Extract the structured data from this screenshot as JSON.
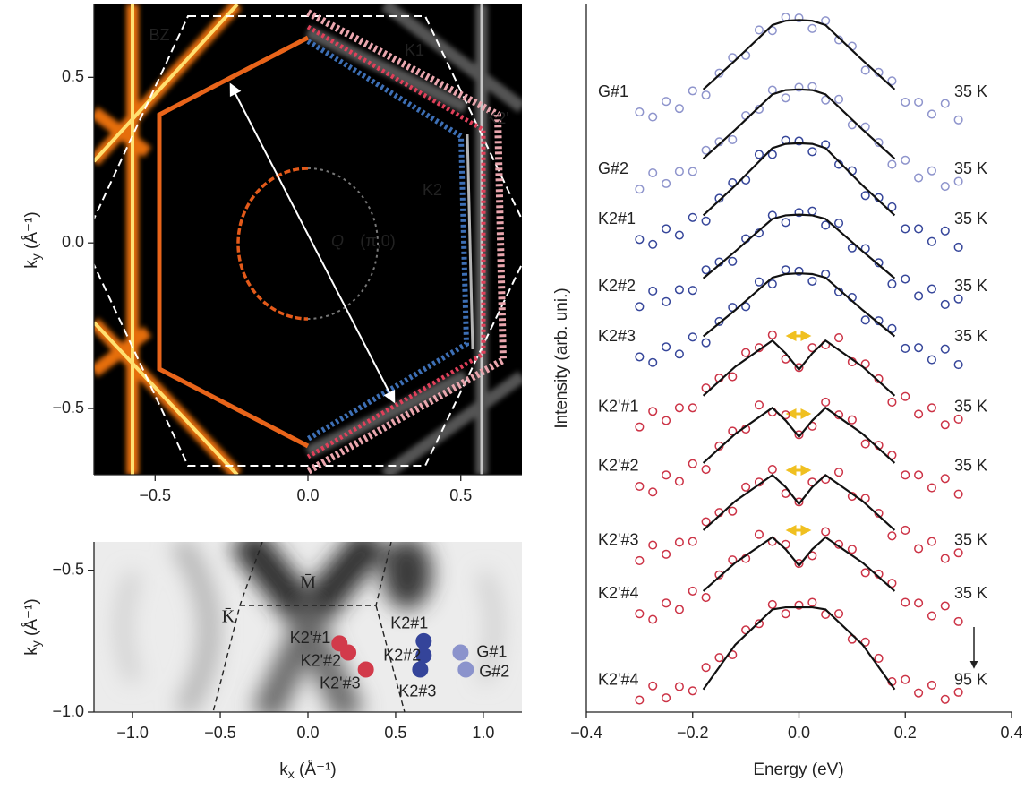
{
  "chart_data": [
    {
      "type": "map",
      "xlim": [
        -0.7,
        0.7
      ],
      "ylim": [
        -0.7,
        0.72
      ],
      "xticks": [
        {
          "value": -0.5,
          "label": "−0.5"
        },
        {
          "value": 0,
          "label": "0.0"
        },
        {
          "value": 0.5,
          "label": "0.5"
        }
      ],
      "yticks": [
        {
          "value": -0.5,
          "label": "−0.5"
        },
        {
          "value": 0,
          "label": "0.0"
        },
        {
          "value": 0.5,
          "label": "0.5"
        }
      ],
      "ylabel": [
        "k",
        "y",
        " (Å⁻¹)"
      ],
      "annotations": [
        {
          "text": "BZ",
          "color": "#ffffff"
        },
        {
          "text": "K1",
          "color": "#f0b0b8"
        },
        {
          "text": "K2'",
          "color": "#e0405a"
        },
        {
          "text": "K2",
          "color": "#3d6fb5"
        },
        {
          "text": "Q",
          "color": "#ffffff"
        },
        {
          "text": "(π,0)",
          "color": "#ffffff"
        }
      ]
    },
    {
      "type": "scatter",
      "xlim": [
        -1.22,
        1.22
      ],
      "ylim": [
        -1.0,
        -0.4
      ],
      "xticks": [
        {
          "value": -1,
          "label": "−1.0"
        },
        {
          "value": -0.5,
          "label": "−0.5"
        },
        {
          "value": 0,
          "label": "0.0"
        },
        {
          "value": 0.5,
          "label": "0.5"
        },
        {
          "value": 1,
          "label": "1.0"
        }
      ],
      "yticks": [
        {
          "value": -0.5,
          "label": "−0.5"
        },
        {
          "value": -1,
          "label": "−1.0"
        }
      ],
      "xlabel": [
        "k",
        "x",
        " (Å⁻¹)"
      ],
      "ylabel": [
        "k",
        "y",
        " (Å⁻¹)"
      ],
      "annotations": [
        {
          "text": "K̄",
          "color": "#222222"
        },
        {
          "text": "M̄",
          "color": "#222222"
        }
      ],
      "points": [
        {
          "label": "K2'#1",
          "x": 0.18,
          "y": -0.758,
          "color": "#d23a4a"
        },
        {
          "label": "K2'#2",
          "x": 0.23,
          "y": -0.79,
          "color": "#d23a4a"
        },
        {
          "label": "K2'#3",
          "x": 0.33,
          "y": -0.85,
          "color": "#d23a4a"
        },
        {
          "label": "K2#1",
          "x": 0.66,
          "y": -0.75,
          "color": "#34449a"
        },
        {
          "label": "K2#2",
          "x": 0.66,
          "y": -0.8,
          "color": "#34449a"
        },
        {
          "label": "K2#3",
          "x": 0.64,
          "y": -0.85,
          "color": "#34449a"
        },
        {
          "label": "G#1",
          "x": 0.87,
          "y": -0.79,
          "color": "#8b93cc"
        },
        {
          "label": "G#2",
          "x": 0.9,
          "y": -0.85,
          "color": "#8b93cc"
        }
      ]
    },
    {
      "type": "scatter",
      "xlim": [
        -0.4,
        0.4
      ],
      "ylim": [
        0,
        100
      ],
      "xticks": [
        {
          "value": -0.4,
          "label": "−0.4"
        },
        {
          "value": -0.2,
          "label": "−0.2"
        },
        {
          "value": 0,
          "label": "0.0"
        },
        0.2,
        0.4
      ],
      "xlabel": "Energy (eV)",
      "ylabel": "Intensity (arb. uni.)",
      "x": [
        -0.3,
        -0.275,
        -0.25,
        -0.225,
        -0.2,
        -0.175,
        -0.15,
        -0.125,
        -0.1,
        -0.075,
        -0.05,
        -0.025,
        0,
        0.025,
        0.05,
        0.075,
        0.1,
        0.125,
        0.15,
        0.175,
        0.2,
        0.225,
        0.25,
        0.275,
        0.3
      ],
      "fit_x": [
        -0.18,
        -0.12,
        -0.05,
        -0.025,
        0,
        0.025,
        0.05,
        0.12,
        0.18
      ],
      "series": [
        {
          "name": "G#1",
          "temperature": "35 K",
          "color": "#8e94cc",
          "values": [
            84.8,
            84.1,
            86.3,
            85.3,
            87.8,
            87.2,
            90.3,
            92.5,
            92.8,
            96.4,
            96.3,
            98.2,
            98.1,
            96.6,
            97.7,
            95.0,
            94.1,
            90.7,
            90.4,
            89.2,
            86.2,
            86.2,
            84.5,
            86.0,
            83.7
          ],
          "fit": [
            88.0,
            92.1,
            97.1,
            97.7,
            97.8,
            97.7,
            97.1,
            92.1,
            88.0
          ]
        },
        {
          "name": "G#2",
          "temperature": "35 K",
          "color": "#8e94cc",
          "values": [
            73.9,
            76.2,
            74.7,
            76.4,
            76.4,
            79.4,
            80.6,
            80.9,
            84.3,
            85.2,
            87.9,
            86.8,
            88.3,
            88.4,
            86.5,
            86.6,
            83.0,
            82.7,
            80.5,
            77.4,
            78.0,
            75.5,
            76.5,
            74.3,
            75.0
          ],
          "fit": [
            78.2,
            82.3,
            87.3,
            87.9,
            88.0,
            87.9,
            87.3,
            82.3,
            78.2
          ]
        },
        {
          "name": "K2#1",
          "temperature": "35 K",
          "color": "#36469a",
          "values": [
            66.8,
            66.1,
            68.3,
            67.4,
            69.9,
            69.4,
            72.6,
            74.8,
            75.2,
            78.8,
            78.8,
            80.8,
            80.7,
            79.2,
            80.2,
            77.4,
            76.5,
            73.0,
            72.7,
            71.4,
            68.3,
            68.3,
            66.5,
            68.0,
            65.7
          ],
          "fit": [
            70.2,
            74.4,
            79.7,
            80.3,
            80.4,
            80.3,
            79.7,
            74.4,
            70.2
          ]
        },
        {
          "name": "K2#2",
          "temperature": "35 K",
          "color": "#36469a",
          "values": [
            57.3,
            59.5,
            58.0,
            59.7,
            59.6,
            62.5,
            63.6,
            63.7,
            66.9,
            67.7,
            70.2,
            69.2,
            70.6,
            70.8,
            68.8,
            69.1,
            65.6,
            65.5,
            63.5,
            60.5,
            61.2,
            58.8,
            59.8,
            57.6,
            58.4
          ],
          "fit": [
            61.3,
            65.1,
            69.7,
            70.2,
            70.3,
            70.2,
            69.7,
            65.1,
            61.3
          ]
        },
        {
          "name": "K2#3",
          "temperature": "35 K",
          "color": "#36469a",
          "values": [
            50.2,
            49.4,
            51.6,
            50.6,
            53.0,
            52.2,
            55.2,
            57.2,
            57.3,
            60.8,
            60.5,
            62.5,
            62.3,
            60.9,
            61.9,
            59.4,
            58.6,
            55.4,
            55.3,
            54.2,
            51.4,
            51.5,
            49.8,
            51.3,
            49.1
          ],
          "fit": [
            53.1,
            56.8,
            61.4,
            61.9,
            62.0,
            61.9,
            61.4,
            56.8,
            53.1
          ]
        },
        {
          "name": "K2'#1",
          "temperature": "35 K",
          "color": "#cc3346",
          "values": [
            40.3,
            42.5,
            41.2,
            43.0,
            43.0,
            45.8,
            47.2,
            47.4,
            50.8,
            51.5,
            53.3,
            49.9,
            48.7,
            51.5,
            51.9,
            52.9,
            49.5,
            49.2,
            47.1,
            43.8,
            44.6,
            42.1,
            43.0,
            40.6,
            41.4
          ],
          "fit": [
            44.7,
            48.8,
            52.5,
            50.7,
            48.4,
            50.7,
            52.5,
            48.8,
            44.7
          ]
        },
        {
          "name": "K2'#2",
          "temperature": "35 K",
          "color": "#cc3346",
          "values": [
            31.9,
            31.1,
            33.5,
            32.6,
            35.1,
            34.3,
            37.6,
            39.7,
            40.0,
            43.4,
            42.4,
            42.0,
            39.2,
            40.4,
            43.8,
            42.0,
            41.3,
            37.9,
            37.7,
            36.3,
            33.5,
            33.5,
            31.7,
            33.0,
            30.8
          ],
          "fit": [
            35.2,
            39.3,
            43.0,
            41.2,
            38.9,
            41.2,
            43.0,
            39.3,
            35.2
          ]
        },
        {
          "name": "K2'#3",
          "temperature": "35 K",
          "color": "#cc3346",
          "values": [
            21.4,
            23.6,
            22.3,
            24.0,
            24.1,
            26.9,
            28.2,
            28.4,
            31.8,
            32.5,
            34.3,
            30.9,
            29.7,
            32.5,
            32.9,
            33.9,
            30.5,
            30.2,
            28.1,
            24.9,
            25.7,
            23.1,
            24.1,
            21.7,
            22.5
          ],
          "fit": [
            25.7,
            29.8,
            33.5,
            31.8,
            29.4,
            31.8,
            33.5,
            29.8,
            25.7
          ]
        },
        {
          "name": "K2'#4",
          "temperature": "35 K",
          "color": "#cc3346",
          "values": [
            13.9,
            13.1,
            15.4,
            14.5,
            17.1,
            16.2,
            19.4,
            21.5,
            21.7,
            25.1,
            24.1,
            23.7,
            21.0,
            22.1,
            25.5,
            23.7,
            23.0,
            19.7,
            19.5,
            18.2,
            15.5,
            15.4,
            13.6,
            15.0,
            12.8
          ],
          "fit": [
            17.1,
            21.1,
            24.7,
            23.0,
            20.7,
            23.0,
            24.7,
            21.1,
            17.1
          ]
        },
        {
          "name": "K2'#4",
          "temperature": "95 K",
          "color": "#cc3346",
          "values": [
            1.7,
            3.7,
            2.0,
            3.6,
            3.0,
            6.3,
            7.7,
            8.1,
            11.6,
            12.5,
            15.2,
            13.9,
            15.1,
            15.5,
            13.8,
            13.9,
            10.3,
            9.9,
            7.6,
            4.3,
            4.6,
            2.7,
            3.8,
            1.8,
            2.8
          ],
          "fit": [
            3.2,
            9.5,
            14.5,
            14.8,
            14.8,
            14.8,
            14.5,
            9.5,
            3.2
          ]
        }
      ]
    }
  ]
}
